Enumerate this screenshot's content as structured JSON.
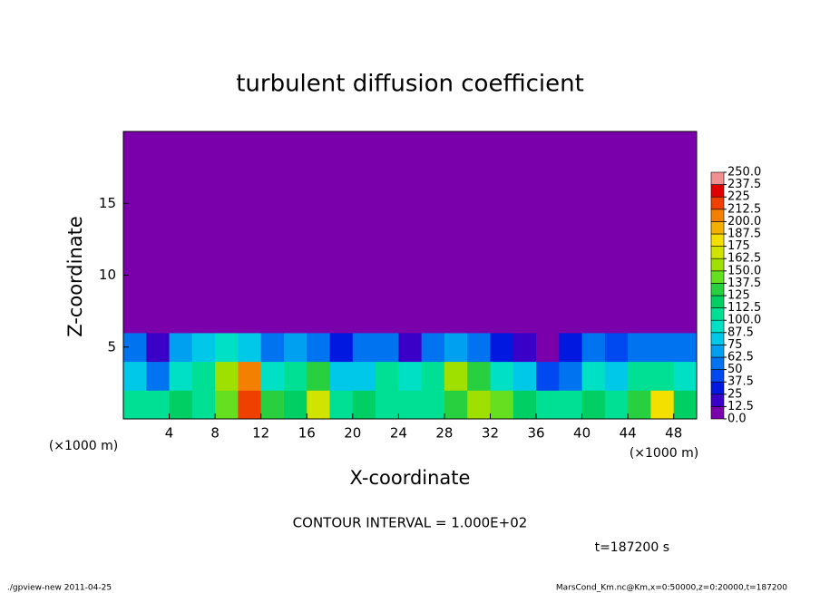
{
  "chart_data": {
    "type": "heatmap",
    "title": "turbulent diffusion coefficient",
    "x_label": "X-coordinate",
    "y_label": "Z-coordinate",
    "x_unit": "(×1000 m)",
    "annotation": "CONTOUR INTERVAL = 1.000E+02",
    "time_label": "t=187200 s",
    "footer_left": "./gpview-new  2011-04-25",
    "footer_right": "MarsCond_Km.nc@Km,x=0:50000,z=0:20000,t=187200",
    "xlim": [
      0,
      50
    ],
    "ylim": [
      0,
      20
    ],
    "xticks": [
      4,
      8,
      12,
      16,
      20,
      24,
      28,
      32,
      36,
      40,
      44,
      48
    ],
    "yticks": [
      5,
      10,
      15
    ],
    "x_bins": [
      0,
      2,
      4,
      6,
      8,
      10,
      12,
      14,
      16,
      18,
      20,
      22,
      24,
      26,
      28,
      30,
      32,
      34,
      36,
      38,
      40,
      42,
      44,
      46,
      48,
      50
    ],
    "y_bins": [
      0,
      2,
      4,
      6,
      8,
      10,
      12,
      14,
      16,
      18,
      20
    ],
    "values": [
      [
        100,
        110,
        120,
        110,
        140,
        220,
        130,
        120,
        170,
        110,
        120,
        105,
        100,
        110,
        130,
        150,
        140,
        120,
        110,
        100,
        120,
        110,
        130,
        180,
        120
      ],
      [
        80,
        50,
        90,
        110,
        150,
        200,
        90,
        100,
        130,
        80,
        75,
        110,
        95,
        110,
        150,
        130,
        90,
        75,
        40,
        60,
        90,
        80,
        100,
        110,
        90
      ],
      [
        60,
        20,
        70,
        80,
        90,
        80,
        60,
        70,
        60,
        30,
        50,
        60,
        20,
        50,
        70,
        50,
        30,
        20,
        10,
        30,
        50,
        40,
        60,
        50,
        50
      ],
      [
        0,
        0,
        0,
        0,
        0,
        0,
        0,
        0,
        0,
        0,
        0,
        0,
        0,
        0,
        0,
        0,
        0,
        0,
        0,
        0,
        0,
        0,
        0,
        0,
        0
      ],
      [
        0,
        0,
        0,
        0,
        0,
        0,
        0,
        0,
        0,
        0,
        0,
        0,
        0,
        0,
        0,
        0,
        0,
        0,
        0,
        0,
        0,
        0,
        0,
        0,
        0
      ],
      [
        0,
        0,
        0,
        0,
        0,
        0,
        0,
        0,
        0,
        0,
        0,
        0,
        0,
        0,
        0,
        0,
        0,
        0,
        0,
        0,
        0,
        0,
        0,
        0,
        0
      ],
      [
        0,
        0,
        0,
        0,
        0,
        0,
        0,
        0,
        0,
        0,
        0,
        0,
        0,
        0,
        0,
        0,
        0,
        0,
        0,
        0,
        0,
        0,
        0,
        0,
        0
      ],
      [
        0,
        0,
        0,
        0,
        0,
        0,
        0,
        0,
        0,
        0,
        0,
        0,
        0,
        0,
        0,
        0,
        0,
        0,
        0,
        0,
        0,
        0,
        0,
        0,
        0
      ],
      [
        0,
        0,
        0,
        0,
        0,
        0,
        0,
        0,
        0,
        0,
        0,
        0,
        0,
        0,
        0,
        0,
        0,
        0,
        0,
        0,
        0,
        0,
        0,
        0,
        0
      ],
      [
        0,
        0,
        0,
        0,
        0,
        0,
        0,
        0,
        0,
        0,
        0,
        0,
        0,
        0,
        0,
        0,
        0,
        0,
        0,
        0,
        0,
        0,
        0,
        0,
        0
      ]
    ],
    "color_levels": [
      {
        "value": 0,
        "label": "0.0"
      },
      12.5,
      25,
      37.5,
      50,
      62.5,
      75,
      87.5,
      {
        "value": 100,
        "label": "100.0"
      },
      112.5,
      125,
      137.5,
      {
        "value": 150,
        "label": "150.0"
      },
      162.5,
      175,
      187.5,
      {
        "value": 200,
        "label": "200.0"
      },
      212.5,
      225,
      237.5,
      {
        "value": 250,
        "label": "250.0"
      }
    ],
    "colors": [
      "#7a00ac",
      "#3a00c8",
      "#0018e0",
      "#0048f0",
      "#0074f0",
      "#00a0f0",
      "#00c8e8",
      "#00e0c4",
      "#00e094",
      "#00d064",
      "#28d040",
      "#64e020",
      "#a0e000",
      "#d0e400",
      "#f4e000",
      "#f4b000",
      "#f48000",
      "#f04000",
      "#e00000",
      "#f09090"
    ]
  }
}
